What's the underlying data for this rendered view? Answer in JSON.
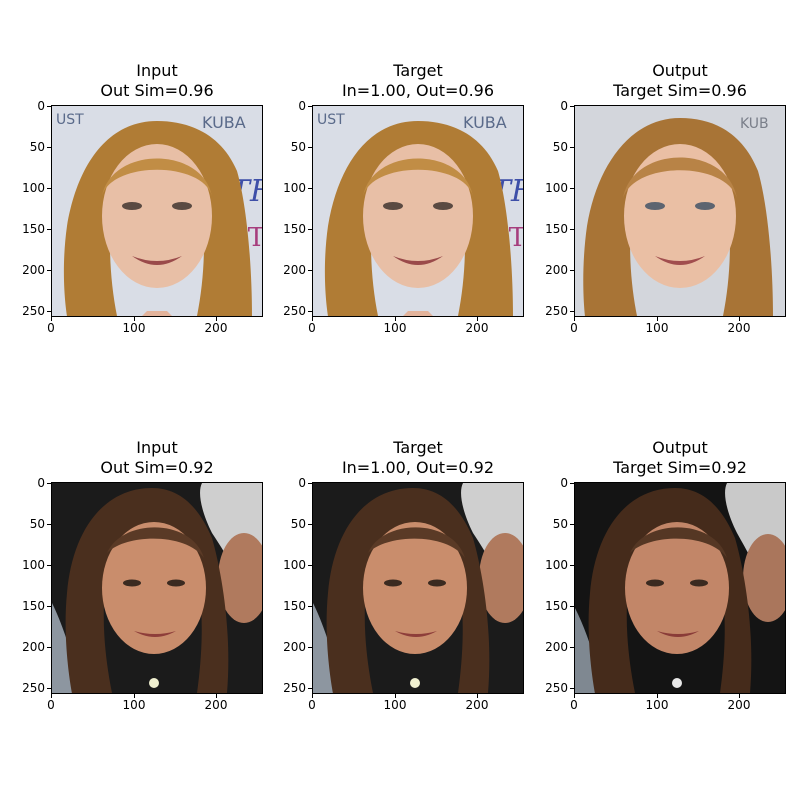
{
  "axis": {
    "x_ticks": [
      "0",
      "100",
      "200"
    ],
    "y_ticks": [
      "0",
      "50",
      "100",
      "150",
      "200",
      "250"
    ]
  },
  "panels": [
    {
      "title1": "Input",
      "title2": "Out Sim=0.96"
    },
    {
      "title1": "Target",
      "title2": "In=1.00, Out=0.96"
    },
    {
      "title1": "Output",
      "title2": "Target Sim=0.96"
    },
    {
      "title1": "Input",
      "title2": "Out Sim=0.92"
    },
    {
      "title1": "Target",
      "title2": "In=1.00, Out=0.92"
    },
    {
      "title1": "Output",
      "title2": "Target Sim=0.92"
    }
  ],
  "colors": {
    "bg_light": "#d9dde6",
    "hair_blonde": "#b07c35",
    "skin_light": "#e8bfa6",
    "bg_dark": "#1b1b1b",
    "hair_brown": "#4a2f1e",
    "skin_tan": "#c98d6c",
    "hair_gray": "#cfcfcf"
  }
}
